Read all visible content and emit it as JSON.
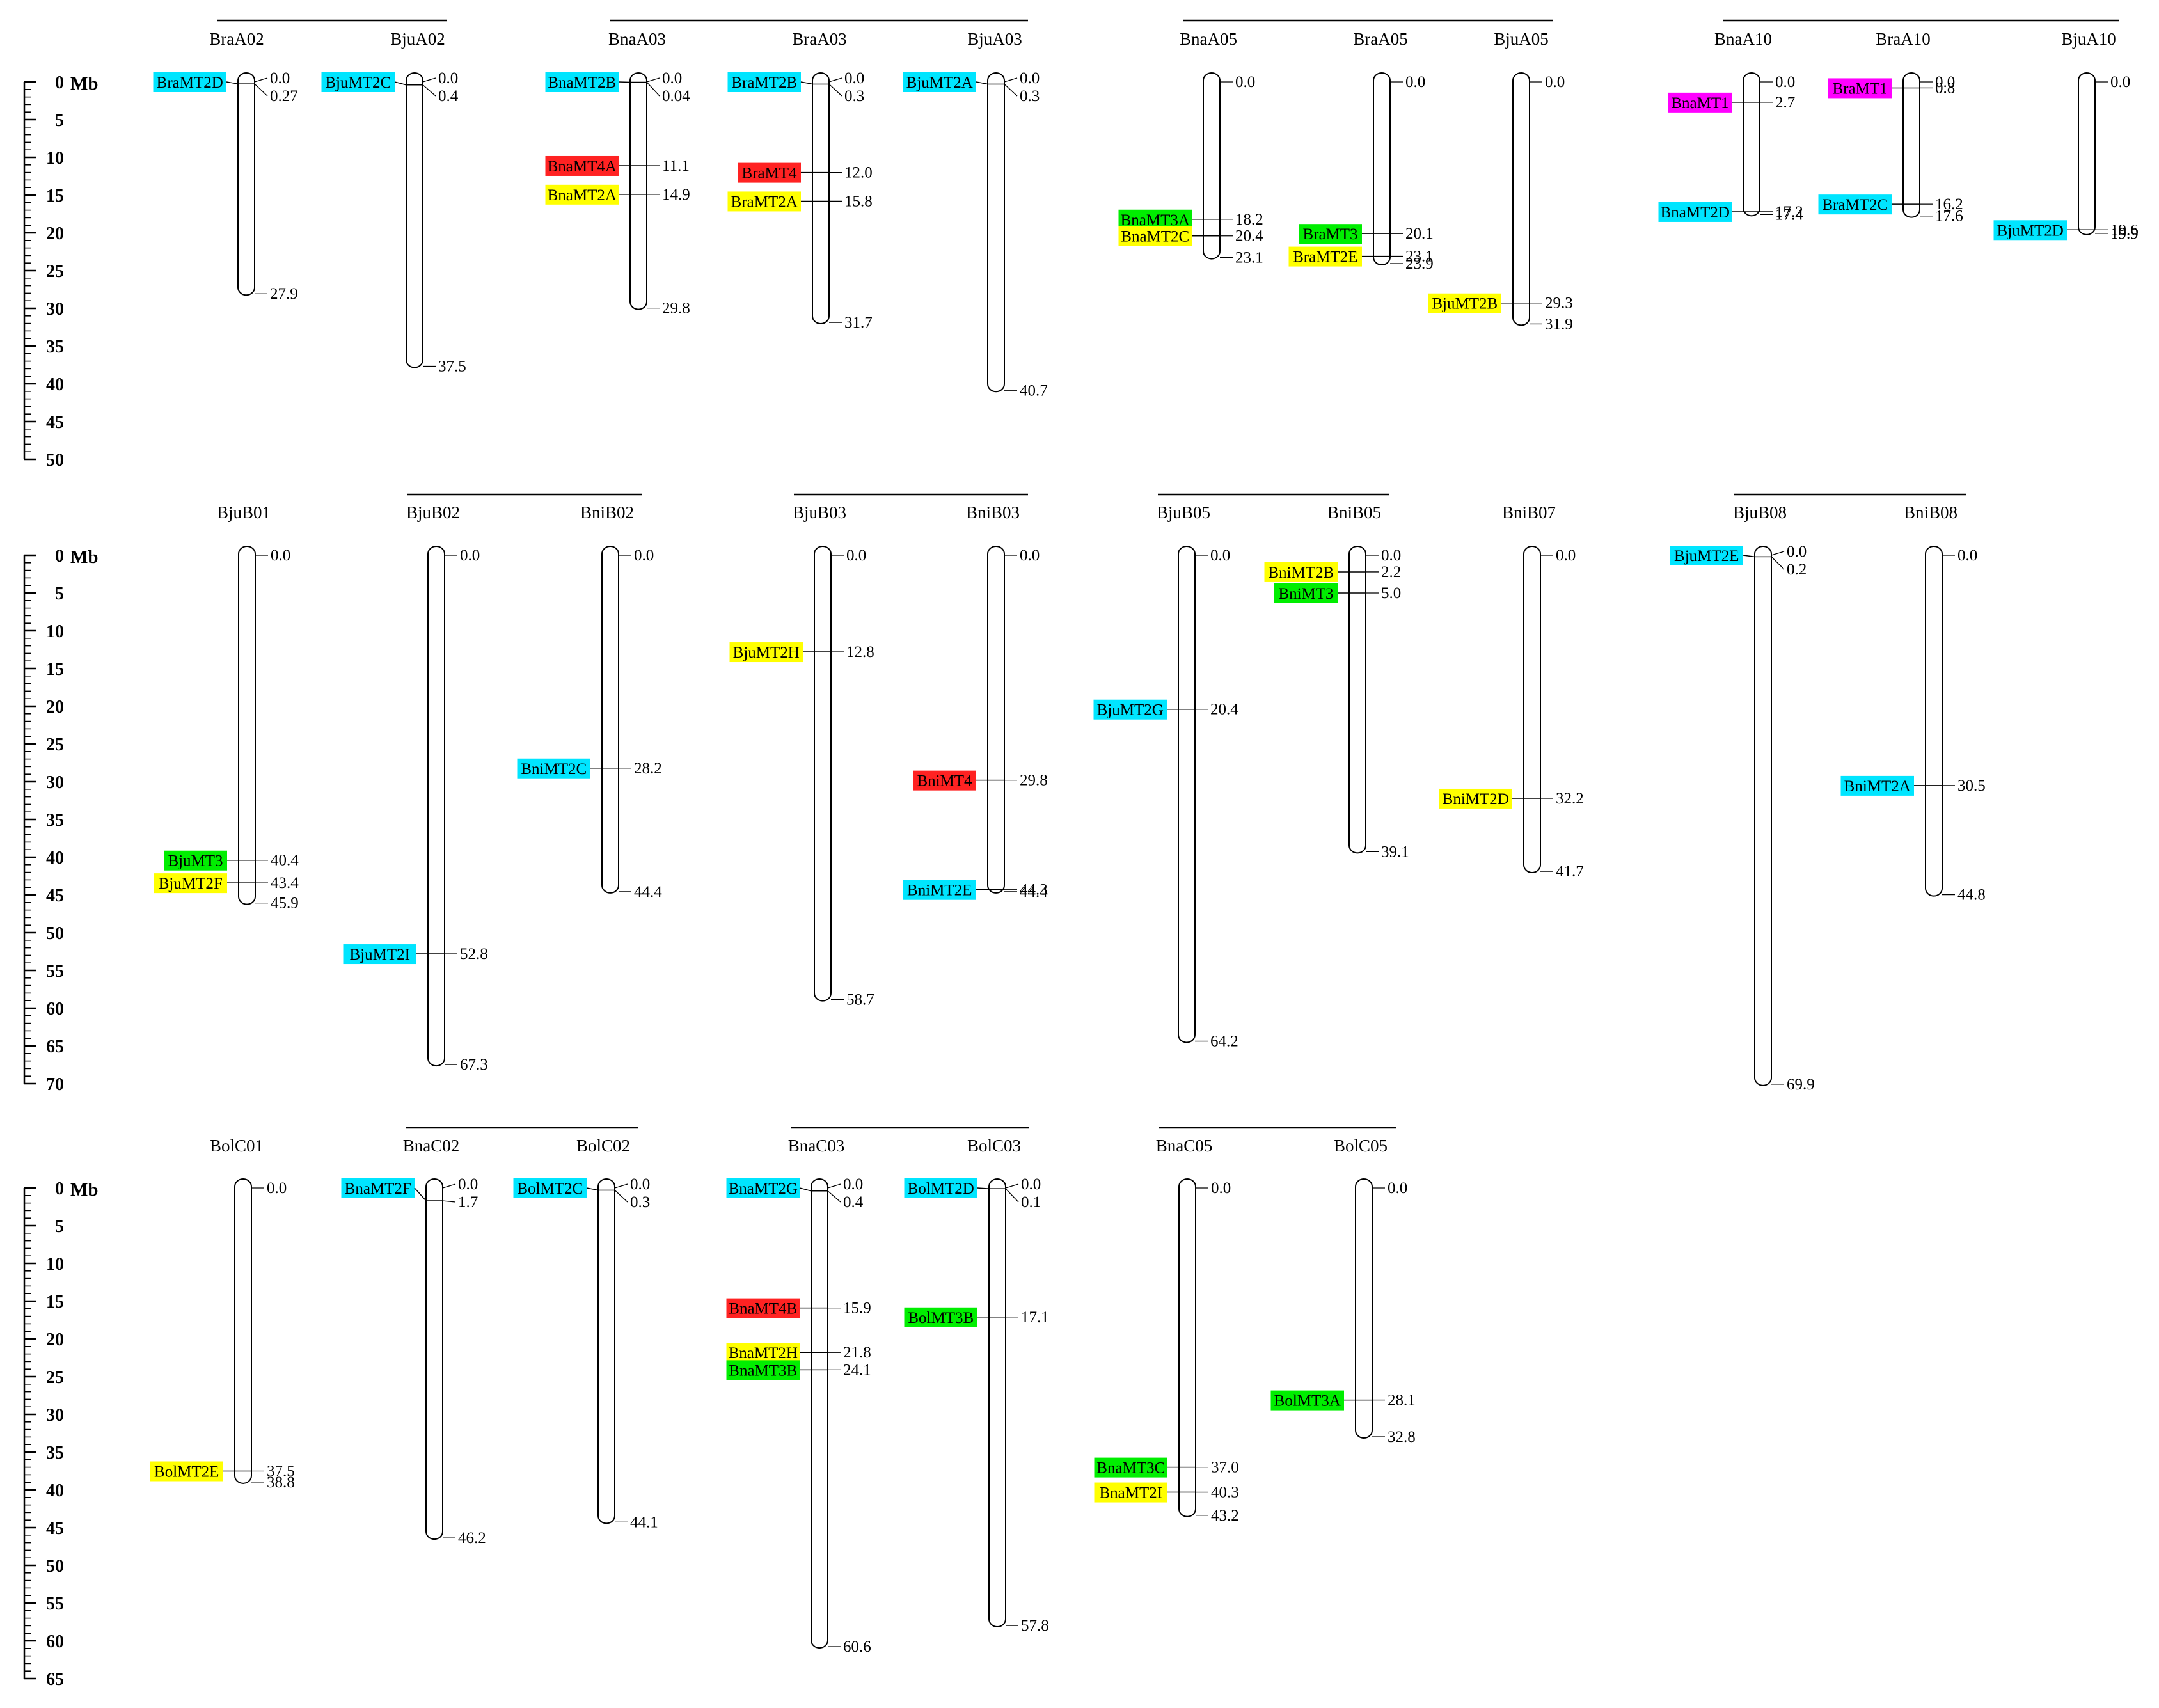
{
  "unit": "Mb",
  "colors": {
    "MT1": "#ff00ff",
    "MT2_cyan": "#00e5ff",
    "MT2_yellow": "#ffff00",
    "MT3": "#00ee00",
    "MT4": "#ff2222"
  },
  "rows": [
    {
      "scale_max": 50,
      "groups": [
        {
          "chromosomes": [
            {
              "name": "BraA02",
              "length": 27.9,
              "genes": [
                {
                  "name": "BraMT2D",
                  "positions": [
                    "0.0",
                    "0.27"
                  ],
                  "color": "#00e5ff"
                }
              ],
              "other_positions": [
                "27.9"
              ]
            },
            {
              "name": "BjuA02",
              "length": 37.5,
              "genes": [
                {
                  "name": "BjuMT2C",
                  "positions": [
                    "0.0",
                    "0.4"
                  ],
                  "color": "#00e5ff"
                }
              ],
              "other_positions": [
                "37.5"
              ]
            }
          ]
        },
        {
          "chromosomes": [
            {
              "name": "BnaA03",
              "length": 29.8,
              "genes": [
                {
                  "name": "BnaMT2B",
                  "positions": [
                    "0.0",
                    "0.04"
                  ],
                  "color": "#00e5ff"
                },
                {
                  "name": "BnaMT4A",
                  "positions": [
                    "11.1"
                  ],
                  "color": "#ff2222"
                },
                {
                  "name": "BnaMT2A",
                  "positions": [
                    "14.9"
                  ],
                  "color": "#ffff00"
                }
              ],
              "other_positions": [
                "29.8"
              ]
            },
            {
              "name": "BraA03",
              "length": 31.7,
              "genes": [
                {
                  "name": "BraMT2B",
                  "positions": [
                    "0.0",
                    "0.3"
                  ],
                  "color": "#00e5ff"
                },
                {
                  "name": "BraMT4",
                  "positions": [
                    "12.0"
                  ],
                  "color": "#ff2222"
                },
                {
                  "name": "BraMT2A",
                  "positions": [
                    "15.8"
                  ],
                  "color": "#ffff00"
                }
              ],
              "other_positions": [
                "31.7"
              ]
            },
            {
              "name": "BjuA03",
              "length": 40.7,
              "genes": [
                {
                  "name": "BjuMT2A",
                  "positions": [
                    "0.0",
                    "0.3"
                  ],
                  "color": "#00e5ff"
                }
              ],
              "other_positions": [
                "40.7"
              ]
            }
          ]
        },
        {
          "chromosomes": [
            {
              "name": "BnaA05",
              "length": 23.1,
              "genes": [
                {
                  "name": "BnaMT3A",
                  "positions": [
                    "18.2"
                  ],
                  "color": "#00ee00"
                },
                {
                  "name": "BnaMT2C",
                  "positions": [
                    "20.4"
                  ],
                  "color": "#ffff00"
                }
              ],
              "other_positions": [
                "0.0",
                "23.1"
              ]
            },
            {
              "name": "BraA05",
              "length": 23.9,
              "genes": [
                {
                  "name": "BraMT3",
                  "positions": [
                    "20.1"
                  ],
                  "color": "#00ee00"
                },
                {
                  "name": "BraMT2E",
                  "positions": [
                    "23.1"
                  ],
                  "color": "#ffff00"
                }
              ],
              "other_positions": [
                "0.0",
                "23.9"
              ]
            },
            {
              "name": "BjuA05",
              "length": 31.9,
              "genes": [
                {
                  "name": "BjuMT2B",
                  "positions": [
                    "29.3"
                  ],
                  "color": "#ffff00"
                }
              ],
              "other_positions": [
                "0.0",
                "31.9"
              ]
            }
          ]
        },
        {
          "chromosomes": [
            {
              "name": "BnaA10",
              "length": 17.4,
              "genes": [
                {
                  "name": "BnaMT1",
                  "positions": [
                    "2.7"
                  ],
                  "color": "#ff00ff"
                },
                {
                  "name": "BnaMT2D",
                  "positions": [
                    "17.2"
                  ],
                  "color": "#00e5ff"
                }
              ],
              "other_positions": [
                "0.0",
                "17.4"
              ]
            },
            {
              "name": "BraA10",
              "length": 17.6,
              "genes": [
                {
                  "name": "BraMT1",
                  "positions": [
                    "0.8"
                  ],
                  "color": "#ff00ff"
                },
                {
                  "name": "BraMT2C",
                  "positions": [
                    "16.2"
                  ],
                  "color": "#00e5ff"
                }
              ],
              "other_positions": [
                "0.0",
                "17.6"
              ]
            },
            {
              "name": "BjuA10",
              "length": 19.9,
              "genes": [
                {
                  "name": "BjuMT2D",
                  "positions": [
                    "19.6"
                  ],
                  "color": "#00e5ff"
                }
              ],
              "other_positions": [
                "0.0",
                "19.9"
              ]
            }
          ]
        }
      ]
    },
    {
      "scale_max": 70,
      "groups": [
        {
          "chromosomes": [
            {
              "name": "BjuB01",
              "length": 45.9,
              "genes": [
                {
                  "name": "BjuMT3",
                  "positions": [
                    "40.4"
                  ],
                  "color": "#00ee00"
                },
                {
                  "name": "BjuMT2F",
                  "positions": [
                    "43.4"
                  ],
                  "color": "#ffff00"
                }
              ],
              "other_positions": [
                "0.0",
                "45.9"
              ]
            }
          ]
        },
        {
          "chromosomes": [
            {
              "name": "BjuB02",
              "length": 67.3,
              "genes": [
                {
                  "name": "BjuMT2I",
                  "positions": [
                    "52.8"
                  ],
                  "color": "#00e5ff"
                }
              ],
              "other_positions": [
                "0.0",
                "67.3"
              ]
            },
            {
              "name": "BniB02",
              "length": 44.4,
              "genes": [
                {
                  "name": "BniMT2C",
                  "positions": [
                    "28.2"
                  ],
                  "color": "#00e5ff"
                }
              ],
              "other_positions": [
                "0.0",
                "44.4"
              ]
            }
          ]
        },
        {
          "chromosomes": [
            {
              "name": "BjuB03",
              "length": 58.7,
              "genes": [
                {
                  "name": "BjuMT2H",
                  "positions": [
                    "12.8"
                  ],
                  "color": "#ffff00"
                }
              ],
              "other_positions": [
                "0.0",
                "58.7"
              ]
            },
            {
              "name": "BniB03",
              "length": 44.4,
              "genes": [
                {
                  "name": "BniMT4",
                  "positions": [
                    "29.8"
                  ],
                  "color": "#ff2222"
                },
                {
                  "name": "BniMT2E",
                  "positions": [
                    "44.3"
                  ],
                  "color": "#00e5ff"
                }
              ],
              "other_positions": [
                "0.0",
                "44.4"
              ]
            }
          ]
        },
        {
          "chromosomes": [
            {
              "name": "BjuB05",
              "length": 64.2,
              "genes": [
                {
                  "name": "BjuMT2G",
                  "positions": [
                    "20.4"
                  ],
                  "color": "#00e5ff"
                }
              ],
              "other_positions": [
                "0.0",
                "64.2"
              ]
            },
            {
              "name": "BniB05",
              "length": 39.1,
              "genes": [
                {
                  "name": "BniMT2B",
                  "positions": [
                    "2.2"
                  ],
                  "color": "#ffff00"
                },
                {
                  "name": "BniMT3",
                  "positions": [
                    "5.0"
                  ],
                  "color": "#00ee00"
                }
              ],
              "other_positions": [
                "0.0",
                "39.1"
              ]
            }
          ]
        },
        {
          "chromosomes": [
            {
              "name": "BniB07",
              "length": 41.7,
              "genes": [
                {
                  "name": "BniMT2D",
                  "positions": [
                    "32.2"
                  ],
                  "color": "#ffff00"
                }
              ],
              "other_positions": [
                "0.0",
                "41.7"
              ]
            }
          ]
        },
        {
          "chromosomes": [
            {
              "name": "BjuB08",
              "length": 69.9,
              "genes": [
                {
                  "name": "BjuMT2E",
                  "positions": [
                    "0.0",
                    "0.2"
                  ],
                  "color": "#00e5ff"
                }
              ],
              "other_positions": [
                "69.9"
              ]
            },
            {
              "name": "BniB08",
              "length": 44.8,
              "genes": [
                {
                  "name": "BniMT2A",
                  "positions": [
                    "30.5"
                  ],
                  "color": "#00e5ff"
                }
              ],
              "other_positions": [
                "0.0",
                "44.8"
              ]
            }
          ]
        }
      ]
    },
    {
      "scale_max": 65,
      "groups": [
        {
          "chromosomes": [
            {
              "name": "BolC01",
              "length": 38.8,
              "genes": [
                {
                  "name": "BolMT2E",
                  "positions": [
                    "37.5"
                  ],
                  "color": "#ffff00"
                }
              ],
              "other_positions": [
                "0.0",
                "38.8"
              ]
            }
          ]
        },
        {
          "chromosomes": [
            {
              "name": "BnaC02",
              "length": 46.2,
              "genes": [
                {
                  "name": "BnaMT2F",
                  "positions": [
                    "0.0",
                    "1.7"
                  ],
                  "color": "#00e5ff"
                }
              ],
              "other_positions": [
                "46.2"
              ]
            },
            {
              "name": "BolC02",
              "length": 44.1,
              "genes": [
                {
                  "name": "BolMT2C",
                  "positions": [
                    "0.0",
                    "0.3"
                  ],
                  "color": "#00e5ff"
                }
              ],
              "other_positions": [
                "44.1"
              ]
            }
          ]
        },
        {
          "chromosomes": [
            {
              "name": "BnaC03",
              "length": 60.6,
              "genes": [
                {
                  "name": "BnaMT2G",
                  "positions": [
                    "0.0",
                    "0.4"
                  ],
                  "color": "#00e5ff"
                },
                {
                  "name": "BnaMT4B",
                  "positions": [
                    "15.9"
                  ],
                  "color": "#ff2222"
                },
                {
                  "name": "BnaMT2H",
                  "positions": [
                    "21.8"
                  ],
                  "color": "#ffff00"
                },
                {
                  "name": "BnaMT3B",
                  "positions": [
                    "24.1"
                  ],
                  "color": "#00ee00"
                }
              ],
              "other_positions": [
                "60.6"
              ]
            },
            {
              "name": "BolC03",
              "length": 57.8,
              "genes": [
                {
                  "name": "BolMT2D",
                  "positions": [
                    "0.0",
                    "0.1"
                  ],
                  "color": "#00e5ff"
                },
                {
                  "name": "BolMT3B",
                  "positions": [
                    "17.1"
                  ],
                  "color": "#00ee00"
                }
              ],
              "other_positions": [
                "57.8"
              ]
            }
          ]
        },
        {
          "chromosomes": [
            {
              "name": "BnaC05",
              "length": 43.2,
              "genes": [
                {
                  "name": "BnaMT3C",
                  "positions": [
                    "37.0"
                  ],
                  "color": "#00ee00"
                },
                {
                  "name": "BnaMT2I",
                  "positions": [
                    "40.3"
                  ],
                  "color": "#ffff00"
                }
              ],
              "other_positions": [
                "0.0",
                "43.2"
              ]
            },
            {
              "name": "BolC05",
              "length": 32.8,
              "genes": [
                {
                  "name": "BolMT3A",
                  "positions": [
                    "28.1"
                  ],
                  "color": "#00ee00"
                }
              ],
              "other_positions": [
                "0.0",
                "32.8"
              ]
            }
          ]
        }
      ]
    }
  ]
}
